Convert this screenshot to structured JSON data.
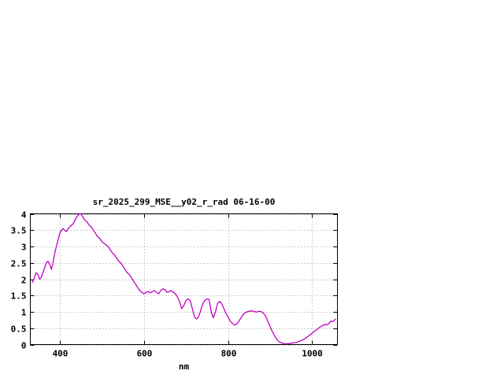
{
  "page": {
    "background": "#ffffff"
  },
  "chart_data": {
    "type": "line",
    "title": "sr_2025_299_MSE__y02_r_rad 06-16-00",
    "xlabel": "nm",
    "ylabel": "",
    "xlim": [
      330,
      1060
    ],
    "ylim": [
      0,
      4
    ],
    "xticks": [
      400,
      600,
      800,
      1000
    ],
    "yticks": [
      0,
      0.5,
      1,
      1.5,
      2,
      2.5,
      3,
      3.5,
      4
    ],
    "grid": true,
    "legend": "none",
    "line_color": "#c000c0",
    "grid_color": "#999999",
    "axis_color": "#000000",
    "series": [
      {
        "name": "sr_2025_299_MSE__y02_r_rad",
        "points": [
          [
            335,
            1.9
          ],
          [
            340,
            2.05
          ],
          [
            344,
            2.2
          ],
          [
            348,
            2.15
          ],
          [
            352,
            2.0
          ],
          [
            356,
            2.05
          ],
          [
            360,
            2.2
          ],
          [
            364,
            2.35
          ],
          [
            368,
            2.5
          ],
          [
            372,
            2.55
          ],
          [
            376,
            2.45
          ],
          [
            380,
            2.3
          ],
          [
            384,
            2.5
          ],
          [
            388,
            2.8
          ],
          [
            392,
            3.0
          ],
          [
            396,
            3.2
          ],
          [
            400,
            3.4
          ],
          [
            404,
            3.5
          ],
          [
            408,
            3.55
          ],
          [
            412,
            3.5
          ],
          [
            416,
            3.45
          ],
          [
            420,
            3.55
          ],
          [
            424,
            3.6
          ],
          [
            428,
            3.65
          ],
          [
            432,
            3.7
          ],
          [
            436,
            3.8
          ],
          [
            440,
            3.9
          ],
          [
            445,
            3.98
          ],
          [
            450,
            4.0
          ],
          [
            455,
            3.9
          ],
          [
            460,
            3.8
          ],
          [
            465,
            3.75
          ],
          [
            470,
            3.65
          ],
          [
            475,
            3.6
          ],
          [
            480,
            3.5
          ],
          [
            485,
            3.4
          ],
          [
            490,
            3.3
          ],
          [
            495,
            3.25
          ],
          [
            500,
            3.15
          ],
          [
            505,
            3.1
          ],
          [
            510,
            3.05
          ],
          [
            515,
            3.0
          ],
          [
            520,
            2.9
          ],
          [
            525,
            2.8
          ],
          [
            530,
            2.75
          ],
          [
            535,
            2.65
          ],
          [
            540,
            2.55
          ],
          [
            545,
            2.5
          ],
          [
            550,
            2.4
          ],
          [
            555,
            2.3
          ],
          [
            560,
            2.2
          ],
          [
            565,
            2.15
          ],
          [
            570,
            2.05
          ],
          [
            575,
            1.95
          ],
          [
            580,
            1.85
          ],
          [
            585,
            1.75
          ],
          [
            590,
            1.65
          ],
          [
            595,
            1.6
          ],
          [
            600,
            1.55
          ],
          [
            605,
            1.6
          ],
          [
            610,
            1.62
          ],
          [
            615,
            1.58
          ],
          [
            620,
            1.62
          ],
          [
            625,
            1.65
          ],
          [
            630,
            1.6
          ],
          [
            635,
            1.55
          ],
          [
            640,
            1.65
          ],
          [
            645,
            1.7
          ],
          [
            650,
            1.68
          ],
          [
            655,
            1.6
          ],
          [
            660,
            1.62
          ],
          [
            665,
            1.65
          ],
          [
            670,
            1.6
          ],
          [
            675,
            1.55
          ],
          [
            680,
            1.45
          ],
          [
            685,
            1.3
          ],
          [
            690,
            1.1
          ],
          [
            695,
            1.2
          ],
          [
            700,
            1.35
          ],
          [
            705,
            1.4
          ],
          [
            710,
            1.35
          ],
          [
            715,
            1.1
          ],
          [
            720,
            0.85
          ],
          [
            725,
            0.78
          ],
          [
            730,
            0.85
          ],
          [
            735,
            1.05
          ],
          [
            740,
            1.25
          ],
          [
            745,
            1.35
          ],
          [
            750,
            1.4
          ],
          [
            755,
            1.38
          ],
          [
            760,
            1.0
          ],
          [
            765,
            0.82
          ],
          [
            770,
            1.0
          ],
          [
            775,
            1.25
          ],
          [
            780,
            1.32
          ],
          [
            785,
            1.25
          ],
          [
            790,
            1.1
          ],
          [
            795,
            0.95
          ],
          [
            800,
            0.85
          ],
          [
            805,
            0.72
          ],
          [
            810,
            0.65
          ],
          [
            815,
            0.6
          ],
          [
            820,
            0.62
          ],
          [
            825,
            0.7
          ],
          [
            830,
            0.8
          ],
          [
            835,
            0.9
          ],
          [
            840,
            0.97
          ],
          [
            845,
            1.0
          ],
          [
            850,
            1.02
          ],
          [
            855,
            1.03
          ],
          [
            860,
            1.02
          ],
          [
            865,
            1.0
          ],
          [
            870,
            1.0
          ],
          [
            875,
            1.02
          ],
          [
            880,
            1.0
          ],
          [
            885,
            0.95
          ],
          [
            890,
            0.85
          ],
          [
            895,
            0.7
          ],
          [
            900,
            0.55
          ],
          [
            905,
            0.4
          ],
          [
            910,
            0.28
          ],
          [
            915,
            0.18
          ],
          [
            920,
            0.1
          ],
          [
            925,
            0.06
          ],
          [
            930,
            0.04
          ],
          [
            935,
            0.02
          ],
          [
            940,
            0.02
          ],
          [
            945,
            0.03
          ],
          [
            950,
            0.04
          ],
          [
            955,
            0.05
          ],
          [
            960,
            0.06
          ],
          [
            965,
            0.08
          ],
          [
            970,
            0.1
          ],
          [
            975,
            0.13
          ],
          [
            980,
            0.16
          ],
          [
            985,
            0.2
          ],
          [
            990,
            0.25
          ],
          [
            995,
            0.3
          ],
          [
            1000,
            0.35
          ],
          [
            1005,
            0.4
          ],
          [
            1010,
            0.45
          ],
          [
            1015,
            0.5
          ],
          [
            1020,
            0.55
          ],
          [
            1025,
            0.58
          ],
          [
            1030,
            0.62
          ],
          [
            1035,
            0.6
          ],
          [
            1040,
            0.65
          ],
          [
            1045,
            0.72
          ],
          [
            1050,
            0.7
          ],
          [
            1055,
            0.78
          ]
        ]
      }
    ]
  }
}
